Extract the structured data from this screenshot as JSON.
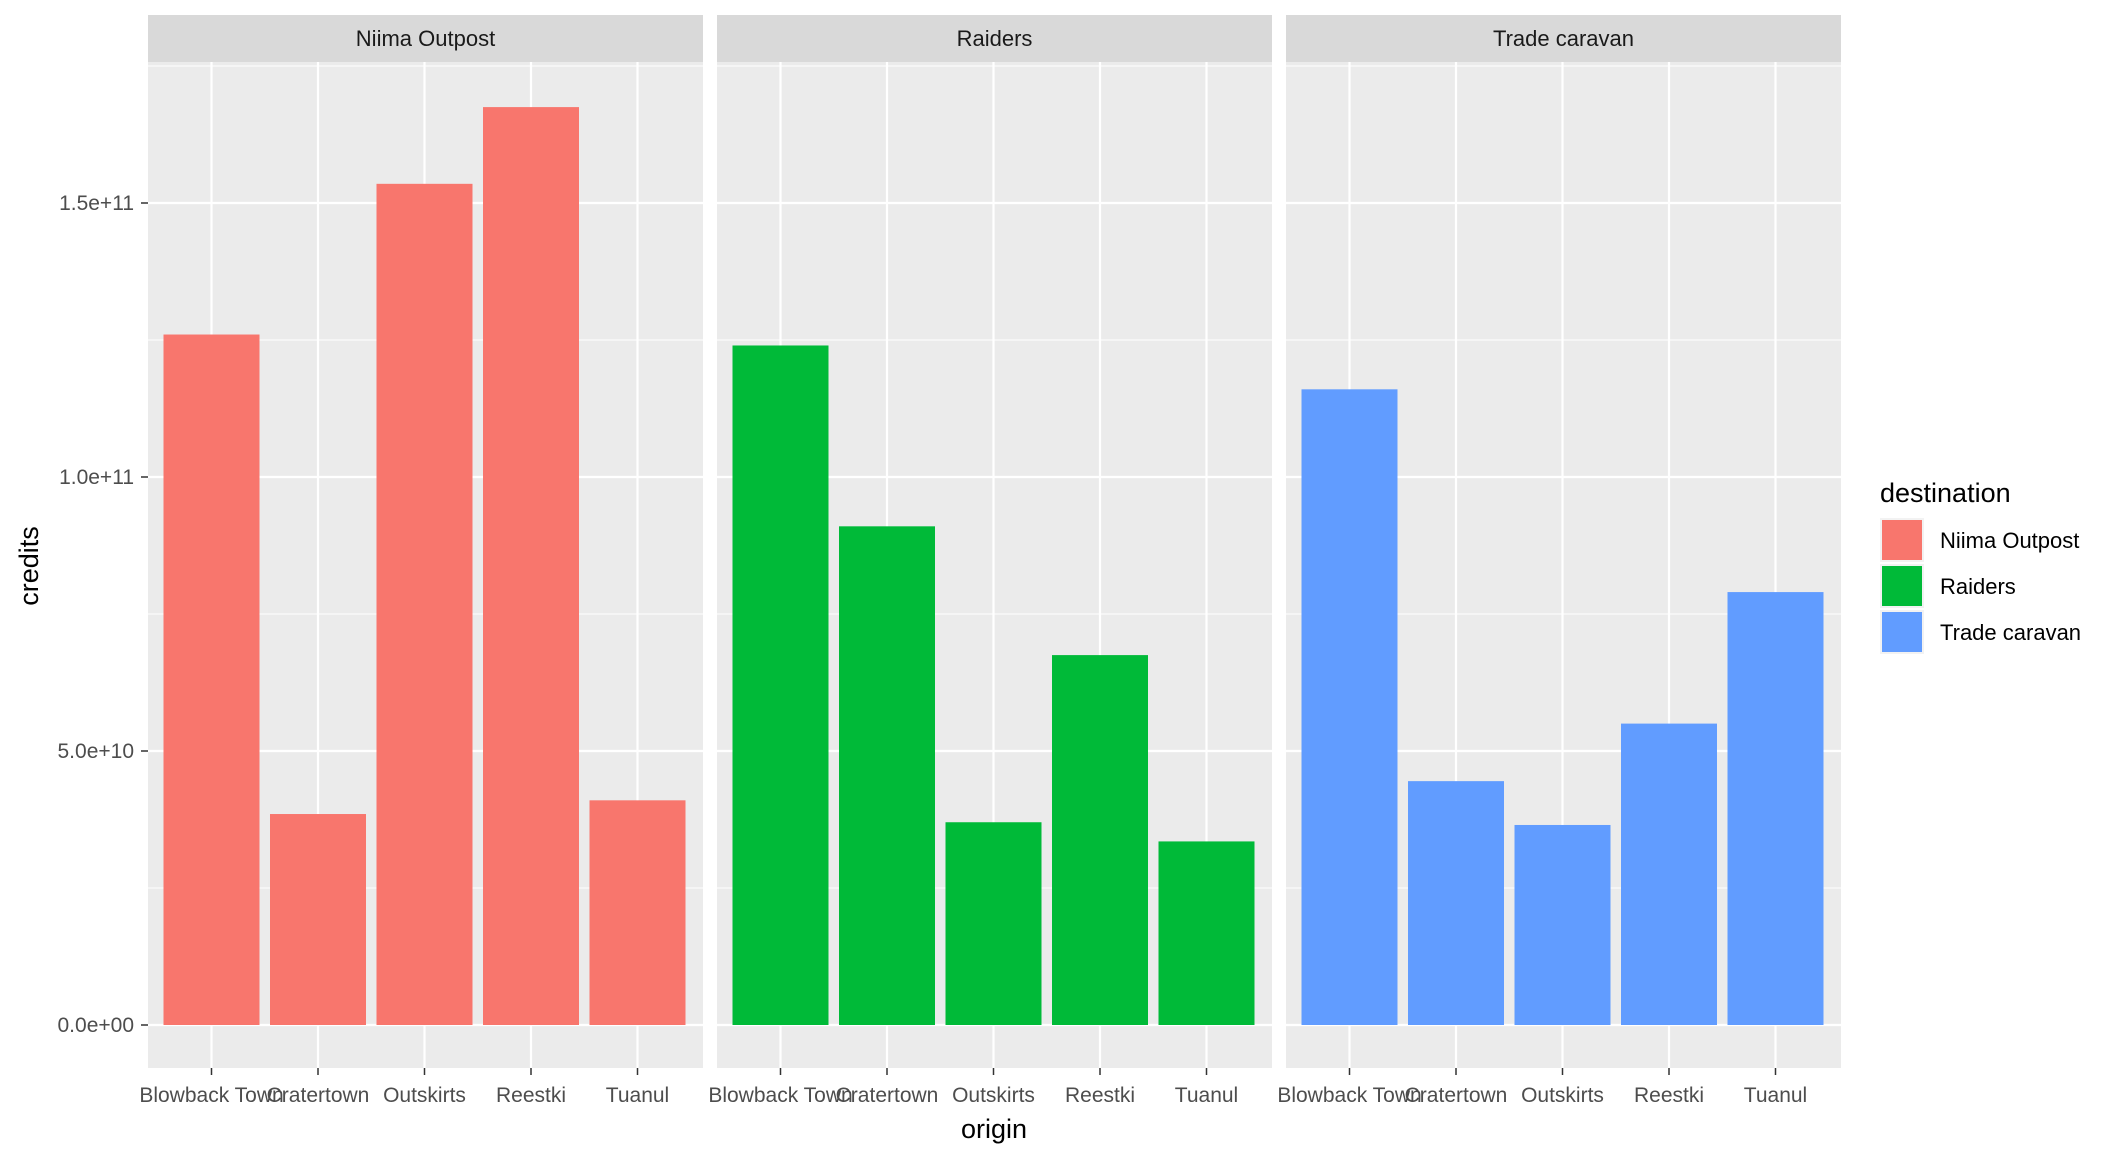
{
  "chart_data": {
    "type": "bar",
    "faceted_by": "destination",
    "xlabel": "origin",
    "ylabel": "credits",
    "ylim": [
      0,
      168000000000
    ],
    "y_ticks": [
      {
        "value": 0,
        "label": "0.0e+00"
      },
      {
        "value": 50000000000,
        "label": "5.0e+10"
      },
      {
        "value": 100000000000,
        "label": "1.0e+11"
      },
      {
        "value": 150000000000,
        "label": "1.5e+11"
      }
    ],
    "categories": [
      "Blowback Town",
      "Cratertown",
      "Outskirts",
      "Reestki",
      "Tuanul"
    ],
    "panels": [
      {
        "strip": "Niima Outpost",
        "color": "#F8766D",
        "values": [
          126000000000,
          38500000000,
          153500000000,
          167500000000,
          41000000000
        ]
      },
      {
        "strip": "Raiders",
        "color": "#00BA38",
        "values": [
          124000000000,
          91000000000,
          37000000000,
          67500000000,
          33500000000
        ]
      },
      {
        "strip": "Trade caravan",
        "color": "#619CFF",
        "values": [
          116000000000,
          44500000000,
          36500000000,
          55000000000,
          79000000000
        ]
      }
    ],
    "legend": {
      "title": "destination",
      "position": "right",
      "entries": [
        {
          "label": "Niima Outpost",
          "color": "#F8766D"
        },
        {
          "label": "Raiders",
          "color": "#00BA38"
        },
        {
          "label": "Trade caravan",
          "color": "#619CFF"
        }
      ]
    },
    "grid": true,
    "panel_background": "#EBEBEB",
    "strip_background": "#D9D9D9"
  }
}
